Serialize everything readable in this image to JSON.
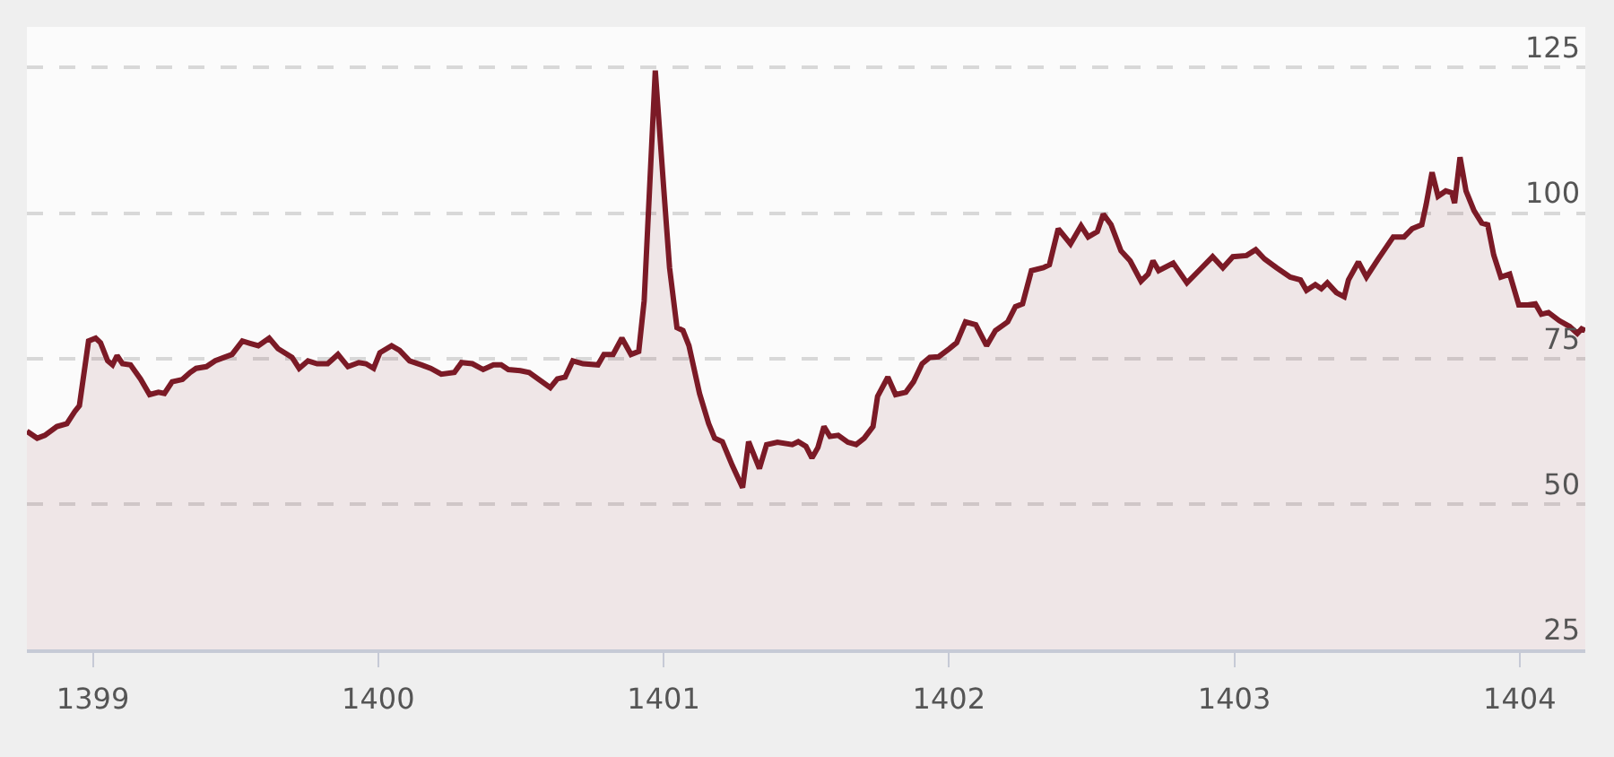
{
  "chart_data": {
    "type": "area",
    "x": [
      1398.769,
      1398.805,
      1398.832,
      1398.874,
      1398.909,
      1398.937,
      1398.953,
      1398.985,
      1399.01,
      1399.027,
      1399.052,
      1399.069,
      1399.085,
      1399.104,
      1399.132,
      1399.167,
      1399.199,
      1399.23,
      1399.251,
      1399.278,
      1399.314,
      1399.341,
      1399.362,
      1399.398,
      1399.429,
      1399.461,
      1399.488,
      1399.524,
      1399.551,
      1399.58,
      1399.618,
      1399.649,
      1399.698,
      1399.723,
      1399.754,
      1399.786,
      1399.823,
      1399.859,
      1399.894,
      1399.932,
      1399.957,
      1399.984,
      1400.006,
      1400.047,
      1400.075,
      1400.11,
      1400.152,
      1400.184,
      1400.221,
      1400.267,
      1400.292,
      1400.33,
      1400.368,
      1400.404,
      1400.431,
      1400.456,
      1400.498,
      1400.529,
      1400.603,
      1400.628,
      1400.655,
      1400.682,
      1400.718,
      1400.77,
      1400.791,
      1400.823,
      1400.854,
      1400.886,
      1400.913,
      1400.932,
      1400.971,
      1401.001,
      1401.021,
      1401.047,
      1401.068,
      1401.089,
      1401.126,
      1401.158,
      1401.179,
      1401.206,
      1401.241,
      1401.277,
      1401.298,
      1401.336,
      1401.361,
      1401.399,
      1401.451,
      1401.472,
      1401.499,
      1401.52,
      1401.541,
      1401.562,
      1401.583,
      1401.612,
      1401.646,
      1401.675,
      1401.703,
      1401.734,
      1401.75,
      1401.786,
      1401.813,
      1401.849,
      1401.876,
      1401.906,
      1401.933,
      1401.964,
      1402.002,
      1402.027,
      1402.058,
      1402.094,
      1402.132,
      1402.163,
      1402.206,
      1402.233,
      1402.258,
      1402.289,
      1402.331,
      1402.352,
      1402.383,
      1402.426,
      1402.463,
      1402.488,
      1402.52,
      1402.541,
      1402.568,
      1402.603,
      1402.635,
      1402.673,
      1402.698,
      1402.715,
      1402.735,
      1402.786,
      1402.834,
      1402.876,
      1402.924,
      1402.96,
      1402.995,
      1403.043,
      1403.075,
      1403.106,
      1403.148,
      1403.196,
      1403.232,
      1403.253,
      1403.284,
      1403.305,
      1403.326,
      1403.358,
      1403.385,
      1403.4,
      1403.435,
      1403.463,
      1403.504,
      1403.557,
      1403.595,
      1403.623,
      1403.657,
      1403.672,
      1403.693,
      1403.714,
      1403.741,
      1403.762,
      1403.772,
      1403.791,
      1403.812,
      1403.84,
      1403.867,
      1403.888,
      1403.909,
      1403.934,
      1403.965,
      1403.997,
      1404.028,
      1404.055,
      1404.076,
      1404.101,
      1404.139,
      1404.175,
      1404.202,
      1404.217,
      1404.23
    ],
    "series": [
      {
        "color": "#7b1a26",
        "values": [
          62.5,
          61.3,
          61.8,
          63.3,
          63.8,
          65.9,
          66.9,
          78.0,
          78.5,
          77.7,
          74.6,
          73.9,
          75.5,
          74.1,
          73.9,
          71.5,
          68.8,
          69.2,
          69.0,
          71.0,
          71.4,
          72.6,
          73.3,
          73.6,
          74.6,
          75.2,
          75.7,
          78.0,
          77.6,
          77.2,
          78.5,
          76.7,
          75.2,
          73.3,
          74.6,
          74.1,
          74.1,
          75.7,
          73.6,
          74.3,
          74.1,
          73.3,
          76.0,
          77.2,
          76.4,
          74.6,
          73.9,
          73.3,
          72.3,
          72.6,
          74.3,
          74.1,
          73.1,
          73.9,
          73.9,
          73.1,
          72.9,
          72.6,
          70.0,
          71.5,
          71.8,
          74.6,
          74.1,
          73.9,
          75.7,
          75.7,
          78.5,
          75.7,
          76.2,
          84.9,
          124.5,
          104.0,
          90.6,
          80.3,
          79.8,
          77.2,
          69.0,
          63.8,
          61.3,
          60.7,
          56.6,
          52.8,
          60.7,
          56.1,
          60.2,
          60.6,
          60.2,
          60.7,
          59.9,
          57.9,
          59.7,
          63.3,
          61.6,
          61.8,
          60.6,
          60.2,
          61.3,
          63.3,
          68.5,
          71.8,
          68.8,
          69.2,
          71.0,
          74.1,
          75.2,
          75.3,
          76.7,
          77.7,
          81.3,
          80.8,
          77.2,
          79.8,
          81.3,
          83.9,
          84.4,
          90.1,
          90.6,
          91.1,
          97.3,
          94.7,
          97.8,
          95.9,
          96.8,
          99.8,
          98.0,
          93.5,
          91.8,
          88.3,
          89.5,
          91.8,
          90.1,
          91.4,
          88.0,
          90.1,
          92.5,
          90.6,
          92.5,
          92.7,
          93.7,
          92.1,
          90.6,
          89.0,
          88.5,
          86.7,
          87.7,
          87.0,
          88.0,
          86.3,
          85.6,
          88.5,
          91.6,
          89.0,
          92.1,
          95.9,
          95.9,
          97.3,
          98.0,
          101.4,
          107.0,
          102.9,
          103.8,
          103.5,
          101.7,
          109.6,
          103.8,
          100.4,
          98.3,
          98.0,
          92.8,
          89.0,
          89.5,
          84.2,
          84.2,
          84.4,
          82.6,
          82.9,
          81.5,
          80.5,
          79.3,
          80.1,
          79.8
        ]
      }
    ],
    "xlim": [
      1398.769,
      1404.23
    ],
    "xticks": [
      1399,
      1400,
      1401,
      1402,
      1403,
      1404
    ],
    "ylim": [
      25,
      132
    ],
    "yticks": [
      25,
      50,
      75,
      100,
      125
    ],
    "grid": "y"
  }
}
